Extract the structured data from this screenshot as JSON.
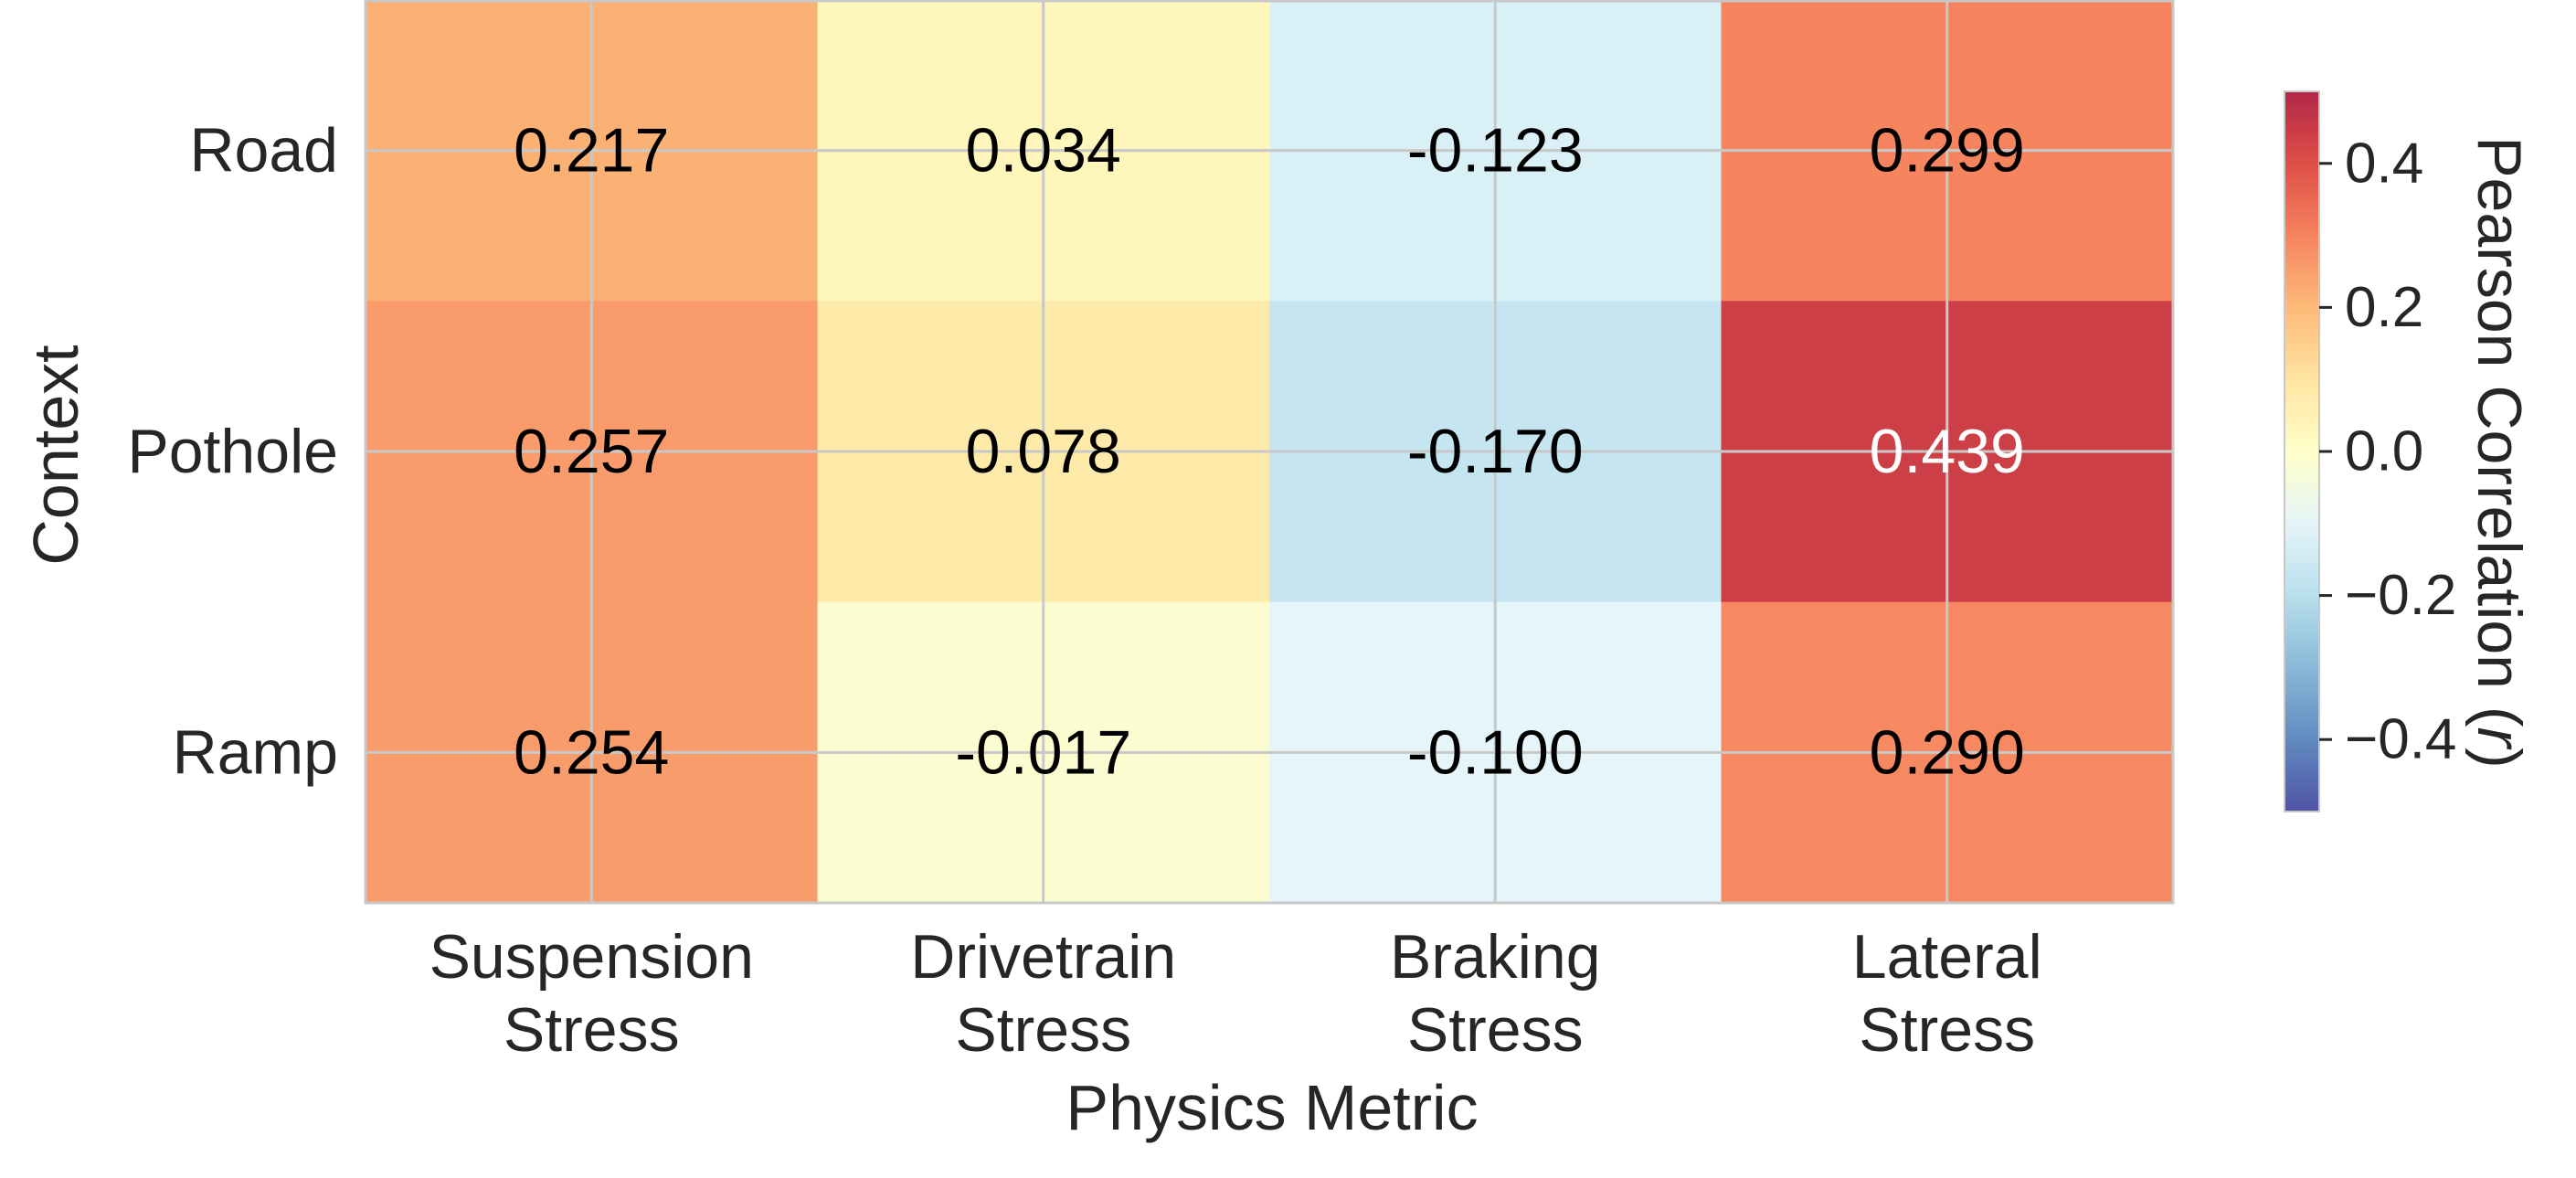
{
  "chart_data": {
    "type": "heatmap",
    "title": "",
    "xlabel": "Physics Metric",
    "ylabel": "Context",
    "columns": [
      {
        "line1": "Suspension",
        "line2": "Stress"
      },
      {
        "line1": "Drivetrain",
        "line2": "Stress"
      },
      {
        "line1": "Braking",
        "line2": "Stress"
      },
      {
        "line1": "Lateral",
        "line2": "Stress"
      }
    ],
    "rows": [
      "Road",
      "Pothole",
      "Ramp"
    ],
    "values": [
      [
        0.217,
        0.034,
        -0.123,
        0.299
      ],
      [
        0.257,
        0.078,
        -0.17,
        0.439
      ],
      [
        0.254,
        -0.017,
        -0.1,
        0.29
      ]
    ],
    "value_labels": [
      [
        "0.217",
        "0.034",
        "-0.123",
        "0.299"
      ],
      [
        "0.257",
        "0.078",
        "-0.170",
        "0.439"
      ],
      [
        "0.254",
        "-0.017",
        "-0.100",
        "0.290"
      ]
    ],
    "colormap": "RdYlBu_r",
    "vmin": -0.5,
    "vmax": 0.5,
    "colorbar": {
      "label_main": "Pearson Correlation (",
      "label_var": "r",
      "label_end": ")",
      "ticks": [
        0.4,
        0.2,
        0.0,
        -0.2,
        -0.4
      ],
      "tick_labels": [
        "0.4",
        "0.2",
        "0.0",
        "−0.2",
        "−0.4"
      ]
    },
    "grid": true
  },
  "colors": {
    "grid": "#c8c8c8",
    "text_dark": "#000000",
    "text_light": "#ffffff",
    "tick_text": "#262626"
  }
}
